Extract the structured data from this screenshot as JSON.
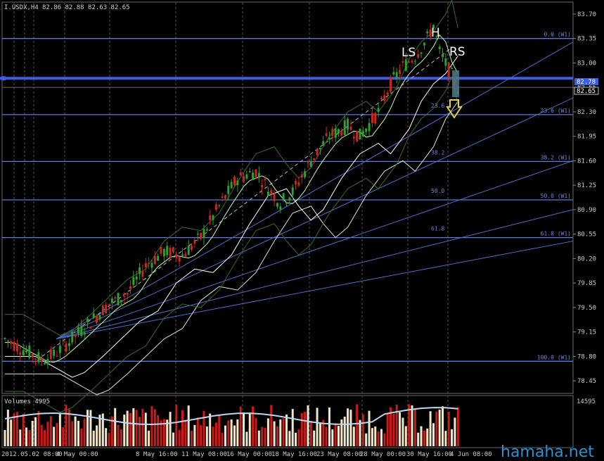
{
  "header": {
    "symbol": "I.USDX,H4",
    "ohlc": "82.86 82.88 82.63 82.65"
  },
  "volume_panel": {
    "label": "Volumes 4995",
    "scale_label": "14595"
  },
  "pattern_labels": {
    "left_shoulder": "LS",
    "head": "H",
    "right_shoulder": "RS"
  },
  "watermark": "hamaha.net",
  "colors": {
    "background": "#000000",
    "bull_candle": "#2ea02e",
    "bear_candle": "#c8281e",
    "fib_line": "#5a78dc",
    "price_line": "#3a5fe0",
    "arrow": "#e8d040",
    "vol_bull": "#f2e6c8",
    "vol_bear": "#d01818"
  },
  "chart_data": {
    "type": "candlestick",
    "y_range": [
      78.3,
      83.8
    ],
    "y_ticks": [
      "83.70",
      "83.35",
      "83.00",
      "82.65",
      "82.30",
      "81.95",
      "81.60",
      "81.25",
      "80.90",
      "80.55",
      "80.20",
      "79.85",
      "79.50",
      "79.15",
      "78.80",
      "78.45"
    ],
    "x_tick_labels": [
      "2012.05.02 08:00",
      "4 May 00:00",
      "8 May 16:00",
      "11 May 08:00",
      "16 May 00:00",
      "18 May 16:00",
      "23 May 08:00",
      "28 May 00:00",
      "30 May 16:00",
      "4 Jun 08:00"
    ],
    "current_price_boxes": [
      "82.78",
      "82.65"
    ],
    "fib_levels": [
      {
        "ratio": "0.0 (W1)",
        "price": 83.35
      },
      {
        "ratio": "23.6 (W1)",
        "price": 82.26
      },
      {
        "ratio": "38.2 (W1)",
        "price": 81.59
      },
      {
        "ratio": "50.0 (W1)",
        "price": 81.04
      },
      {
        "ratio": "61.8 (W1)",
        "price": 80.5
      },
      {
        "ratio": "100.0 (W1)",
        "price": 78.73
      }
    ],
    "fib_inner_labels": [
      "23.6",
      "38.2",
      "50.0",
      "61.8"
    ],
    "horizontal_line": 82.78,
    "price_path": [
      [
        0,
        79.05
      ],
      [
        6,
        78.9
      ],
      [
        12,
        78.75
      ],
      [
        16,
        78.82
      ],
      [
        22,
        79.05
      ],
      [
        28,
        79.3
      ],
      [
        34,
        79.55
      ],
      [
        40,
        79.7
      ],
      [
        46,
        80.1
      ],
      [
        52,
        80.3
      ],
      [
        58,
        80.25
      ],
      [
        64,
        80.5
      ],
      [
        70,
        80.95
      ],
      [
        76,
        81.35
      ],
      [
        82,
        81.45
      ],
      [
        86,
        81.2
      ],
      [
        90,
        81.0
      ],
      [
        94,
        81.15
      ],
      [
        100,
        81.6
      ],
      [
        106,
        81.95
      ],
      [
        112,
        82.1
      ],
      [
        116,
        81.95
      ],
      [
        122,
        82.3
      ],
      [
        126,
        82.7
      ],
      [
        130,
        82.95
      ],
      [
        134,
        83.1
      ],
      [
        138,
        83.35
      ],
      [
        140,
        83.55
      ],
      [
        142,
        83.15
      ],
      [
        145,
        82.9
      ],
      [
        148,
        82.65
      ]
    ],
    "moving_averages": [
      {
        "name": "fast",
        "color": "#c0ffa0"
      },
      {
        "name": "slow",
        "color": "#ffffff"
      }
    ],
    "volume_unit": "ticks"
  }
}
